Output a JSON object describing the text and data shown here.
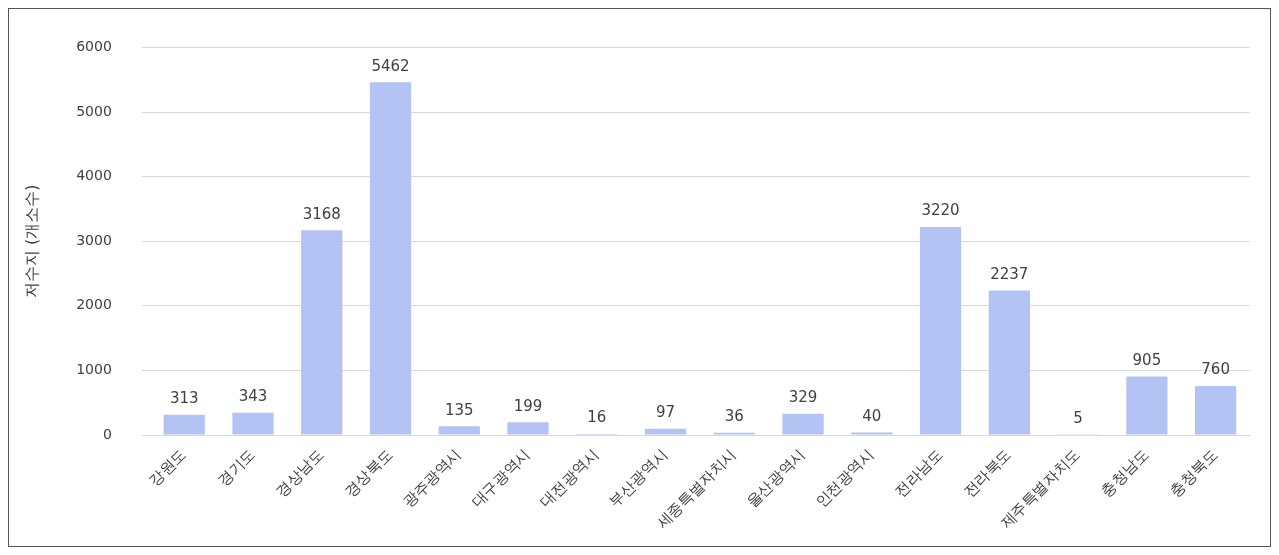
{
  "chart_data": {
    "type": "bar",
    "ylabel": "저수지 (개소수)",
    "categories": [
      "강원도",
      "경기도",
      "경상남도",
      "경상북도",
      "광주광역시",
      "대구광역시",
      "대전광역시",
      "부산광역시",
      "세종특별자치시",
      "울산광역시",
      "인천광역시",
      "전라남도",
      "전라북도",
      "제주특별자치도",
      "충청남도",
      "충청북도"
    ],
    "values": [
      313,
      343,
      3168,
      5462,
      135,
      199,
      16,
      97,
      36,
      329,
      40,
      3220,
      2237,
      5,
      905,
      760
    ],
    "color": "#b3c3f3",
    "ylim": [
      0,
      6000
    ],
    "yticks": [
      0,
      1000,
      2000,
      3000,
      4000,
      5000,
      6000
    ],
    "grid": "y",
    "data_labels": true,
    "legend": false
  }
}
